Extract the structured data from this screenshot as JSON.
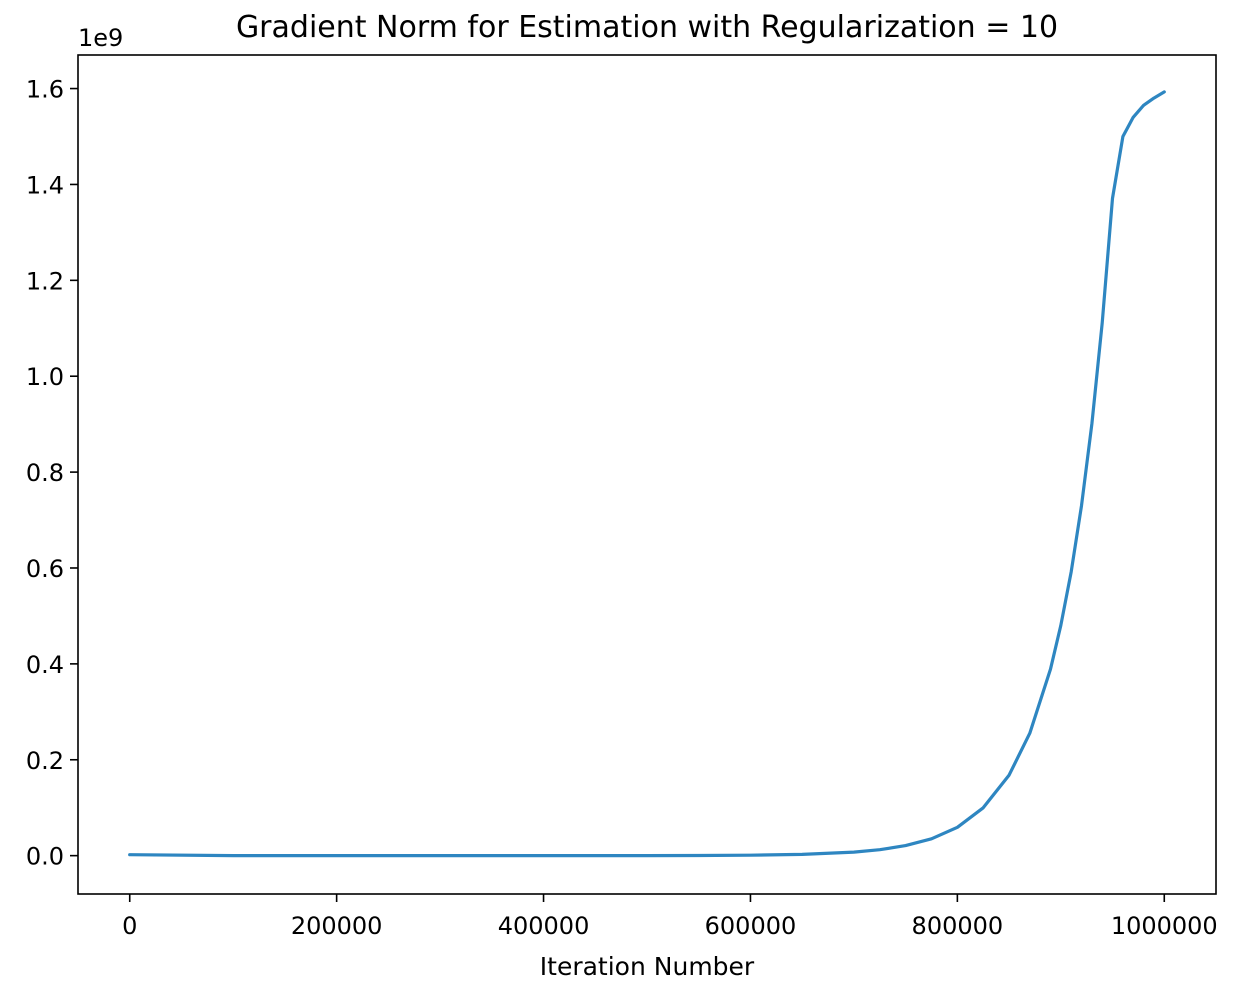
{
  "chart_data": {
    "type": "line",
    "title": "Gradient Norm for Estimation with Regularization = 10",
    "xlabel": "Iteration Number",
    "ylabel": "",
    "y_offset_label": "1e9",
    "xlim": [
      -50000,
      1050000
    ],
    "ylim": [
      -0.08,
      1.67
    ],
    "xticks": [
      0,
      200000,
      400000,
      600000,
      800000,
      1000000
    ],
    "xtick_labels": [
      "0",
      "200000",
      "400000",
      "600000",
      "800000",
      "1000000"
    ],
    "yticks": [
      0.0,
      0.2,
      0.4,
      0.6,
      0.8,
      1.0,
      1.2,
      1.4,
      1.6
    ],
    "ytick_labels": [
      "0.0",
      "0.2",
      "0.4",
      "0.6",
      "0.8",
      "1.0",
      "1.2",
      "1.4",
      "1.6"
    ],
    "grid": false,
    "line_color": "#2e86c1",
    "series": [
      {
        "x": [
          0,
          100000,
          200000,
          300000,
          400000,
          500000,
          550000,
          600000,
          650000,
          700000,
          725000,
          750000,
          775000,
          800000,
          825000,
          850000,
          870000,
          890000,
          900000,
          910000,
          920000,
          930000,
          940000,
          950000,
          960000,
          970000,
          980000,
          990000,
          1000000
        ],
        "values": [
          0.002,
          0.0,
          0.0,
          0.0,
          0.0,
          0.0001,
          0.0003,
          0.0009,
          0.0026,
          0.0074,
          0.0124,
          0.0209,
          0.0352,
          0.0592,
          0.0998,
          0.168,
          0.2555,
          0.389,
          0.48,
          0.592,
          0.73,
          0.901,
          1.111,
          1.371,
          1.5,
          1.54,
          1.565,
          1.58,
          1.593
        ]
      }
    ]
  }
}
